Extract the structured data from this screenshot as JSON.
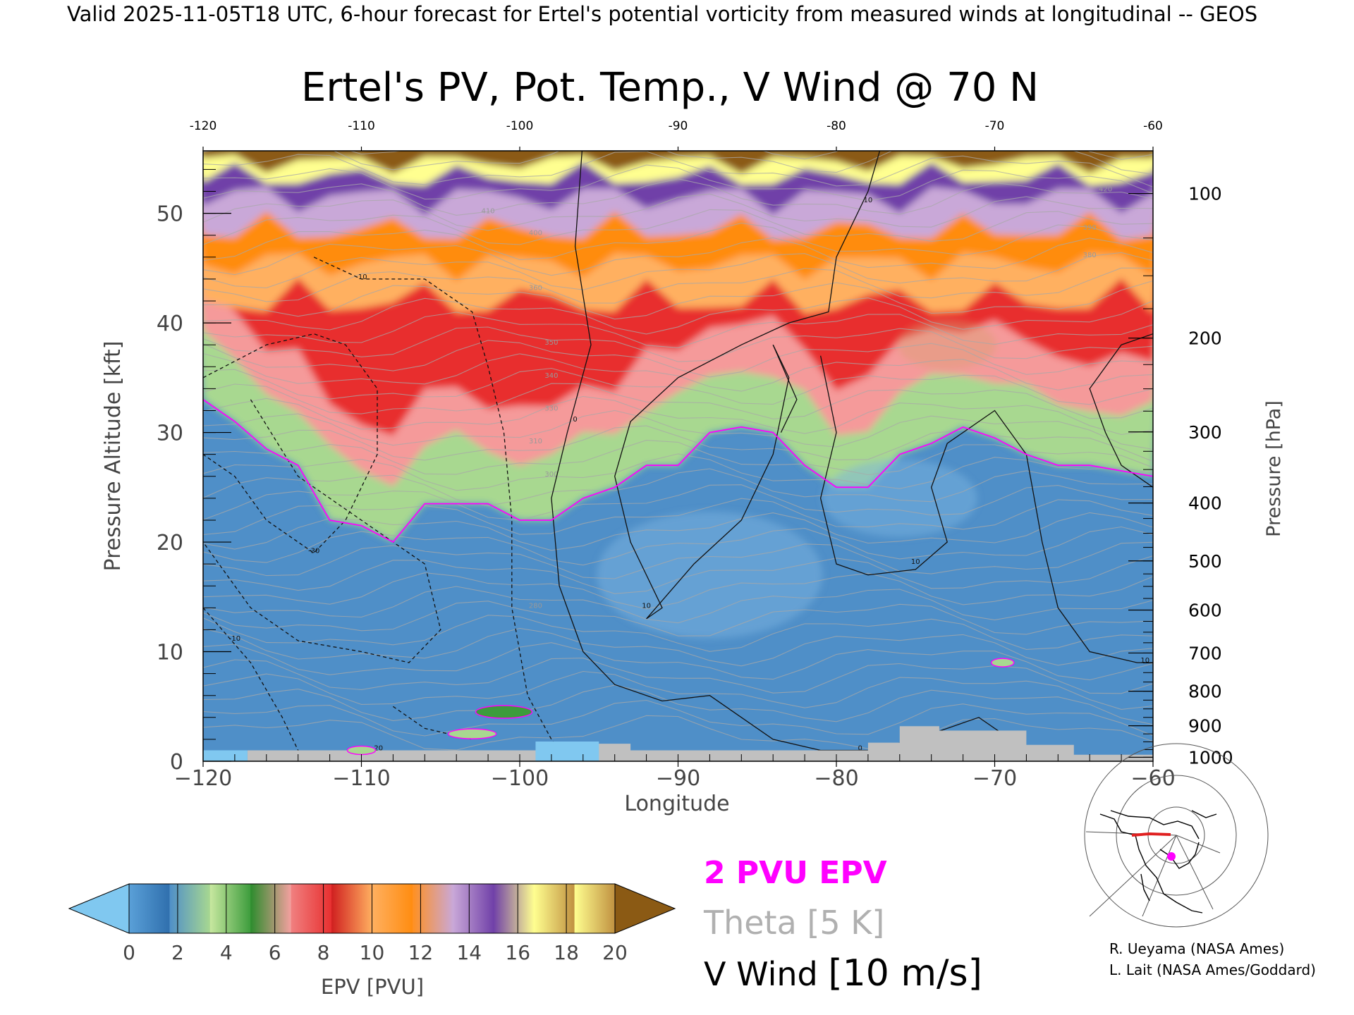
{
  "header": {
    "valid_line": "Valid 2025-11-05T18 UTC, 6-hour forecast for Ertel's potential vorticity from measured winds at longitudinal -- GEOS"
  },
  "chart_data": {
    "type": "heatmap",
    "title": "Ertel's PV, Pot. Temp., V Wind @ 70 N",
    "xlabel": "Longitude",
    "ylabel": "Pressure Altitude [kft]",
    "y2label": "Pressure [hPa]",
    "xlim": [
      -120,
      -60
    ],
    "ylim": [
      0,
      55.7
    ],
    "x_ticks": [
      -120,
      -110,
      -100,
      -90,
      -80,
      -70,
      -60
    ],
    "x_tick_labels": [
      "−120",
      "−110",
      "−100",
      "−90",
      "−80",
      "−70",
      "−60"
    ],
    "x_top_tick_labels": [
      "-120",
      "-110",
      "-100",
      "-90",
      "-80",
      "-70",
      "-60"
    ],
    "y_ticks": [
      0,
      10,
      20,
      30,
      40,
      50
    ],
    "y_tick_labels": [
      "0",
      "10",
      "20",
      "30",
      "40",
      "50"
    ],
    "pressure_ticks_hpa": [
      100,
      200,
      300,
      400,
      500,
      600,
      700,
      800,
      900,
      1000
    ],
    "pressure_tick_labels": [
      "100",
      "200",
      "300",
      "400",
      "500",
      "600",
      "700",
      "800",
      "900",
      "1000"
    ],
    "pv_levels": [
      0,
      2,
      4,
      6,
      8,
      10,
      12,
      14,
      16,
      18,
      20
    ],
    "colorbar_label": "EPV [PVU]",
    "colorbar_tick_labels": [
      "0",
      "2",
      "4",
      "6",
      "8",
      "10",
      "12",
      "14",
      "16",
      "18",
      "20"
    ],
    "colormap": [
      "#80c8f0",
      "#3a7cb8",
      "#5b9ad0",
      "#a8d890",
      "#3c9c3c",
      "#f59a9a",
      "#e82f2f",
      "#ffb060",
      "#ff8c10",
      "#c9a8d8",
      "#7040a8",
      "#ffff90",
      "#8b5a14"
    ],
    "pv2_profile": {
      "name": "2 PVU EPV",
      "color": "#ff00ff",
      "x": [
        -120,
        -118,
        -116,
        -114,
        -112,
        -110,
        -108,
        -106,
        -104,
        -102,
        -100,
        -98,
        -96,
        -94,
        -92,
        -90,
        -88,
        -86,
        -84,
        -82,
        -80,
        -78,
        -76,
        -74,
        -72,
        -70,
        -68,
        -66,
        -64,
        -62,
        -60
      ],
      "y_kft": [
        33,
        31,
        28.5,
        27,
        22,
        21.5,
        20,
        23.5,
        23.5,
        23.5,
        22,
        22,
        24,
        25,
        27,
        27,
        30,
        30.5,
        30,
        27,
        25,
        25,
        28,
        29,
        30.5,
        29.5,
        28,
        27,
        27,
        26.5,
        26
      ]
    },
    "theta_label": "Theta [5 K]",
    "theta_contour_labels": [
      "280",
      "300",
      "310",
      "330",
      "340",
      "350",
      "360",
      "380",
      "390",
      "400",
      "410",
      "420"
    ],
    "v_wind_label": "V Wind [10 m/s]",
    "v_wind_contour_labels": [
      "-30",
      "-20",
      "-10",
      "-10",
      "0",
      "0",
      "10",
      "10",
      "10",
      "10",
      "10"
    ],
    "terrain_color": "#c0c0c0"
  },
  "legend": {
    "pv2": "2 PVU EPV",
    "theta_a": "Theta ",
    "theta_b": "[5 K]",
    "vwind_a": "V Wind ",
    "vwind_b": "[10 m/s]"
  },
  "credits": {
    "line1": "R. Ueyama (NASA Ames)",
    "line2": "L. Lait (NASA Ames/Goddard)"
  }
}
